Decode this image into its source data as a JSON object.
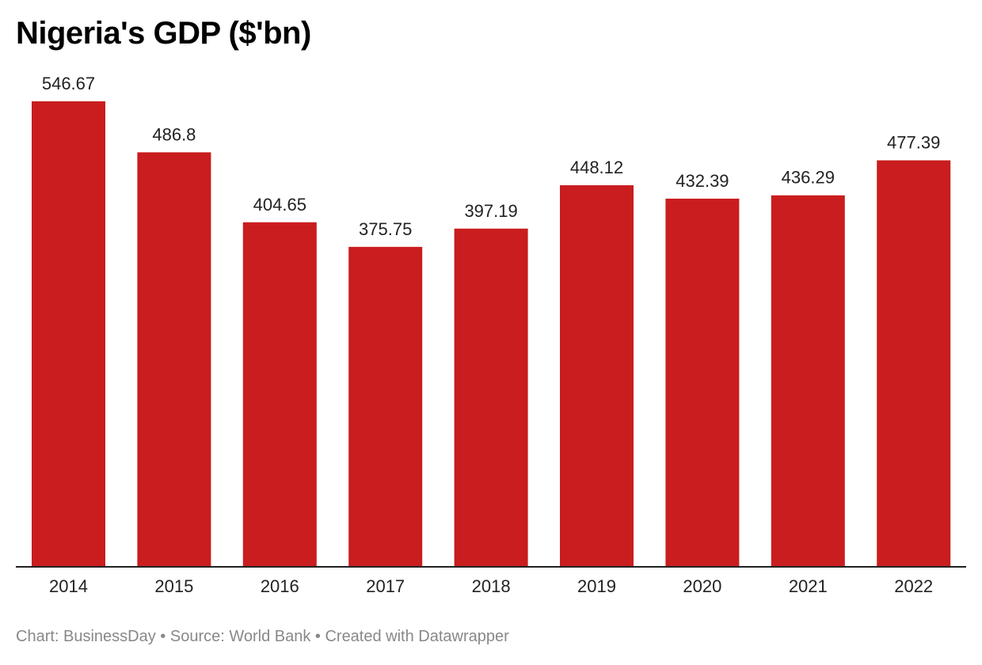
{
  "chart_data": {
    "type": "bar",
    "title": "Nigeria's GDP ($'bn)",
    "categories": [
      "2014",
      "2015",
      "2016",
      "2017",
      "2018",
      "2019",
      "2020",
      "2021",
      "2022"
    ],
    "values": [
      546.67,
      486.8,
      404.65,
      375.75,
      397.19,
      448.12,
      432.39,
      436.29,
      477.39
    ],
    "value_labels": [
      "546.67",
      "486.8",
      "404.65",
      "375.75",
      "397.19",
      "448.12",
      "432.39",
      "436.29",
      "477.39"
    ],
    "xlabel": "",
    "ylabel": "",
    "ylim": [
      0,
      546.67
    ],
    "grid": false,
    "bar_color": "#c91d1f"
  },
  "footer": "Chart: BusinessDay • Source: World Bank • Created with Datawrapper"
}
